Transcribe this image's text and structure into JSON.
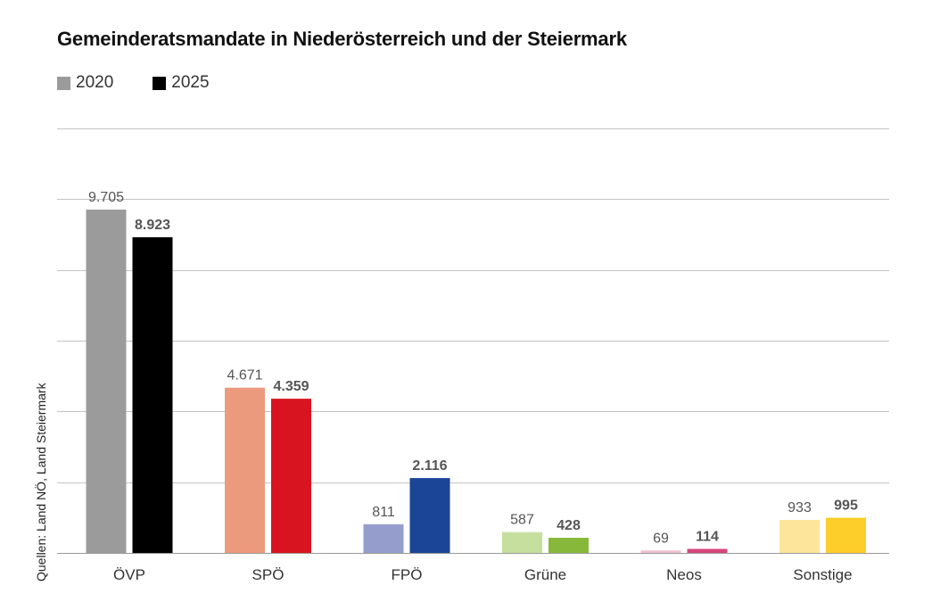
{
  "chart_data": {
    "type": "bar",
    "title": "Gemeinderatsmandate in Niederösterreich und der Steiermark",
    "categories": [
      "ÖVP",
      "SPÖ",
      "FPÖ",
      "Grüne",
      "Neos",
      "Sonstige"
    ],
    "series": [
      {
        "name": "2020",
        "values": [
          9705,
          4671,
          811,
          587,
          69,
          933
        ],
        "labels": [
          "9.705",
          "4.671",
          "811",
          "587",
          "69",
          "933"
        ],
        "colors": [
          "#9b9b9b",
          "#ec9a7e",
          "#949dcb",
          "#c6df9f",
          "#f1bfcf",
          "#fde59b"
        ],
        "legend_color": "#9b9b9b"
      },
      {
        "name": "2025",
        "values": [
          8923,
          4359,
          2116,
          428,
          114,
          995
        ],
        "labels": [
          "8.923",
          "4.359",
          "2.116",
          "428",
          "114",
          "995"
        ],
        "colors": [
          "#000000",
          "#d7141f",
          "#1b4596",
          "#87b83a",
          "#d6457b",
          "#fdcd2a"
        ],
        "legend_color": "#000000"
      }
    ],
    "xlabel": "",
    "ylabel": "",
    "ylim": [
      0,
      12000
    ],
    "gridlines": [
      0,
      2000,
      4000,
      6000,
      8000,
      10000,
      12000
    ],
    "grid": true,
    "legend_position": "top-left"
  },
  "source": "Quellen: Land NÖ, Land Steiermark"
}
